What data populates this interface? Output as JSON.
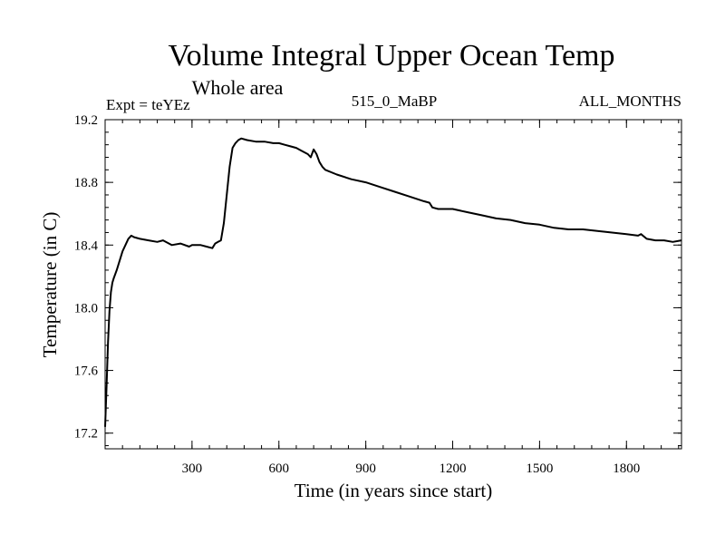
{
  "chart_data": {
    "type": "line",
    "title": "Volume Integral Upper Ocean Temp",
    "subtitle": "Whole area",
    "header_left": "Expt = teYEz",
    "header_center": "515_0_MaBP",
    "header_right": "ALL_MONTHS",
    "xlabel": "Time (in years since start)",
    "ylabel": "Temperature (in C)",
    "xlim": [
      0,
      1990
    ],
    "ylim": [
      17.1,
      19.2
    ],
    "xticks": [
      300,
      600,
      900,
      1200,
      1500,
      1800
    ],
    "yticks": [
      17.2,
      17.6,
      18.0,
      18.4,
      18.8,
      19.2
    ],
    "series": [
      {
        "name": "Volume integral upper ocean temperature",
        "color": "#000000",
        "x": [
          0,
          5,
          10,
          15,
          20,
          25,
          30,
          40,
          50,
          60,
          70,
          80,
          90,
          100,
          120,
          150,
          180,
          200,
          230,
          260,
          290,
          300,
          330,
          350,
          370,
          380,
          390,
          400,
          410,
          420,
          430,
          440,
          450,
          460,
          470,
          490,
          520,
          550,
          580,
          600,
          620,
          640,
          660,
          680,
          700,
          710,
          720,
          730,
          740,
          750,
          760,
          800,
          850,
          900,
          950,
          1000,
          1050,
          1100,
          1120,
          1130,
          1150,
          1200,
          1250,
          1300,
          1350,
          1400,
          1450,
          1500,
          1550,
          1600,
          1650,
          1700,
          1750,
          1800,
          1840,
          1850,
          1870,
          1900,
          1930,
          1960,
          1990
        ],
        "y": [
          17.24,
          17.5,
          17.78,
          17.98,
          18.1,
          18.16,
          18.19,
          18.24,
          18.3,
          18.36,
          18.4,
          18.44,
          18.46,
          18.45,
          18.44,
          18.43,
          18.42,
          18.43,
          18.4,
          18.41,
          18.39,
          18.4,
          18.4,
          18.39,
          18.38,
          18.41,
          18.42,
          18.43,
          18.54,
          18.72,
          18.9,
          19.02,
          19.05,
          19.07,
          19.08,
          19.07,
          19.06,
          19.06,
          19.05,
          19.05,
          19.04,
          19.03,
          19.02,
          19.0,
          18.98,
          18.96,
          19.01,
          18.98,
          18.93,
          18.9,
          18.88,
          18.85,
          18.82,
          18.8,
          18.77,
          18.74,
          18.71,
          18.68,
          18.67,
          18.64,
          18.63,
          18.63,
          18.61,
          18.59,
          18.57,
          18.56,
          18.54,
          18.53,
          18.51,
          18.5,
          18.5,
          18.49,
          18.48,
          18.47,
          18.46,
          18.47,
          18.44,
          18.43,
          18.43,
          18.42,
          18.43
        ]
      }
    ]
  }
}
